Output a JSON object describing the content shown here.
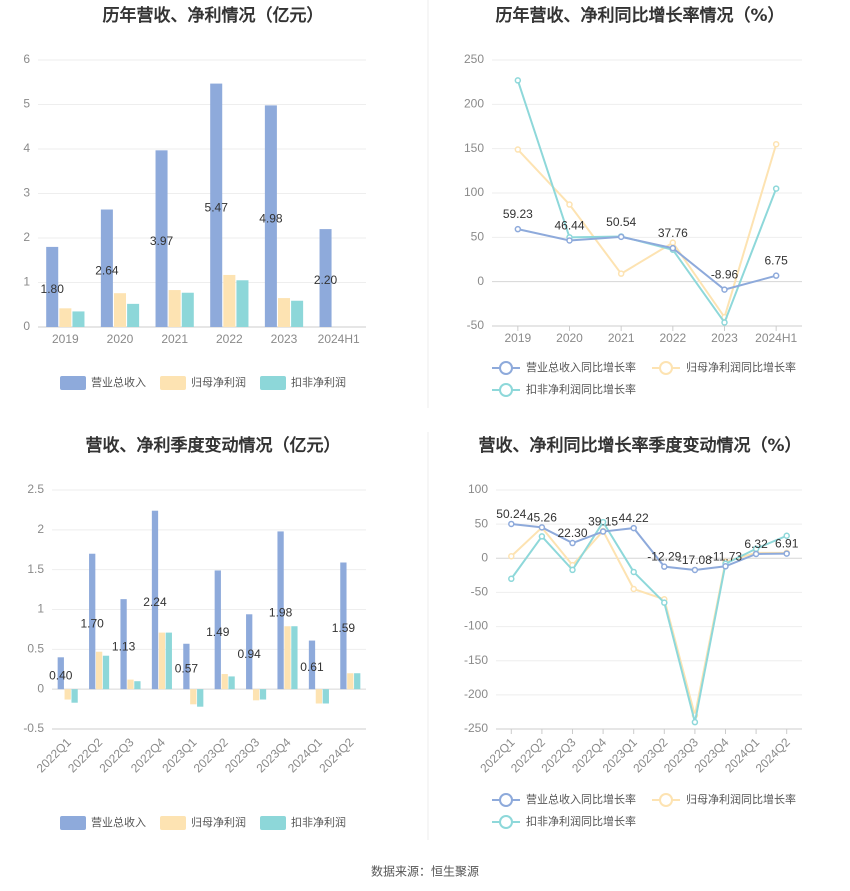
{
  "source": "数据来源：恒生聚源",
  "colors": {
    "revenue": "#8eaadb",
    "netprofit": "#fde3b2",
    "deducted": "#8dd7d9",
    "revenue_line": "#8eaadb",
    "netprofit_line": "#fde3b2",
    "deducted_line": "#8ed8da"
  },
  "chart_data": [
    {
      "type": "bar",
      "title": "历年营收、净利情况（亿元）",
      "categories": [
        "2019",
        "2020",
        "2021",
        "2022",
        "2023",
        "2024H1"
      ],
      "ylim": [
        0,
        6
      ],
      "yticks": [
        0,
        1,
        2,
        3,
        4,
        5,
        6
      ],
      "ytick_labels": [
        "0",
        "1",
        "2",
        "3",
        "4",
        "5",
        "6"
      ],
      "series": [
        {
          "name": "营业总收入",
          "values": [
            1.8,
            2.64,
            3.97,
            5.47,
            4.98,
            2.2
          ],
          "labels": [
            "1.80",
            "2.64",
            "3.97",
            "5.47",
            "4.98",
            "2.20"
          ]
        },
        {
          "name": "归母净利润",
          "values": [
            0.42,
            0.76,
            0.83,
            1.17,
            0.65,
            null
          ]
        },
        {
          "name": "扣非净利润",
          "values": [
            0.35,
            0.52,
            0.77,
            1.05,
            0.59,
            null
          ]
        }
      ]
    },
    {
      "type": "line",
      "title": "历年营收、净利同比增长率情况（%）",
      "categories": [
        "2019",
        "2020",
        "2021",
        "2022",
        "2023",
        "2024H1"
      ],
      "ylim": [
        -50,
        250
      ],
      "yticks": [
        -50,
        0,
        50,
        100,
        150,
        200,
        250
      ],
      "ytick_labels": [
        "-50",
        "0",
        "50",
        "100",
        "150",
        "200",
        "250"
      ],
      "series": [
        {
          "name": "营业总收入同比增长率",
          "values": [
            59.23,
            46.44,
            50.54,
            37.76,
            -8.96,
            6.75
          ],
          "labels": [
            "59.23",
            "46.44",
            "50.54",
            "37.76",
            "-8.96",
            "6.75"
          ]
        },
        {
          "name": "归母净利润同比增长率",
          "values": [
            149,
            87,
            9,
            44,
            -40,
            155
          ]
        },
        {
          "name": "扣非净利润同比增长率",
          "values": [
            227,
            50,
            51,
            36,
            -46,
            105
          ]
        }
      ]
    },
    {
      "type": "bar",
      "title": "营收、净利季度变动情况（亿元）",
      "categories": [
        "2022Q1",
        "2022Q2",
        "2022Q3",
        "2022Q4",
        "2023Q1",
        "2023Q2",
        "2023Q3",
        "2023Q4",
        "2024Q1",
        "2024Q2"
      ],
      "ylim": [
        -0.5,
        2.5
      ],
      "yticks": [
        -0.5,
        0,
        0.5,
        1,
        1.5,
        2,
        2.5
      ],
      "ytick_labels": [
        "-0.5",
        "0",
        "0.5",
        "1",
        "1.5",
        "2",
        "2.5"
      ],
      "series": [
        {
          "name": "营业总收入",
          "values": [
            0.4,
            1.7,
            1.13,
            2.24,
            0.57,
            1.49,
            0.94,
            1.98,
            0.61,
            1.59
          ],
          "labels": [
            "0.40",
            "1.70",
            "1.13",
            "2.24",
            "0.57",
            "1.49",
            "0.94",
            "1.98",
            "0.61",
            "1.59"
          ]
        },
        {
          "name": "归母净利润",
          "values": [
            -0.13,
            0.47,
            0.12,
            0.71,
            -0.19,
            0.19,
            -0.14,
            0.79,
            -0.18,
            0.2
          ]
        },
        {
          "name": "扣非净利润",
          "values": [
            -0.17,
            0.42,
            0.1,
            0.71,
            -0.22,
            0.16,
            -0.13,
            0.79,
            -0.18,
            0.2
          ]
        }
      ]
    },
    {
      "type": "line",
      "title": "营收、净利同比增长率季度变动情况（%）",
      "categories": [
        "2022Q1",
        "2022Q2",
        "2022Q3",
        "2022Q4",
        "2023Q1",
        "2023Q2",
        "2023Q3",
        "2023Q4",
        "2024Q1",
        "2024Q2"
      ],
      "ylim": [
        -250,
        100
      ],
      "yticks": [
        -250,
        -200,
        -150,
        -100,
        -50,
        0,
        50,
        100
      ],
      "ytick_labels": [
        "-250",
        "-200",
        "-150",
        "-100",
        "-50",
        "0",
        "50",
        "100"
      ],
      "series": [
        {
          "name": "营业总收入同比增长率",
          "values": [
            50.24,
            45.26,
            22.3,
            39.15,
            44.22,
            -12.29,
            -17.08,
            -11.73,
            6.32,
            6.91
          ],
          "labels": [
            "50.24",
            "45.26",
            "22.30",
            "39.15",
            "44.22",
            "-12.29",
            "-17.08",
            "-11.73",
            "6.32",
            "6.91"
          ]
        },
        {
          "name": "归母净利润同比增长率",
          "values": [
            3,
            45,
            -10,
            40,
            -45,
            -60,
            -230,
            -5,
            8,
            8
          ]
        },
        {
          "name": "扣非净利润同比增长率",
          "values": [
            -30,
            32,
            -17,
            53,
            -20,
            -65,
            -240,
            -8,
            14,
            33
          ]
        }
      ]
    }
  ]
}
